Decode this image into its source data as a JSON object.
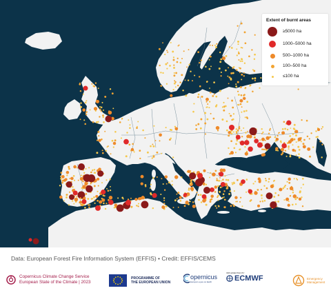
{
  "map": {
    "land_color": "#f2f2f2",
    "sea_color": "#0c3349",
    "border_color": "#5b7888",
    "burnt_colors": {
      "ge5000": "#8b1a1a",
      "1000_5000": "#e02a2a",
      "500_1000": "#ee8a2a",
      "100_500": "#f2a432",
      "le100": "#f5c84b"
    }
  },
  "legend": {
    "title": "Extent of burnt areas",
    "items": [
      {
        "label": "≥5000 ha",
        "color": "#8b1a1a",
        "icon": "large-dark-red-dot"
      },
      {
        "label": "1000–5000 ha",
        "color": "#e02a2a",
        "icon": "red-dot"
      },
      {
        "label": "500–1000 ha",
        "color": "#ee8a2a",
        "icon": "orange-dot"
      },
      {
        "label": "100–500 ha",
        "color": "#f2a432",
        "icon": "small-orange-dot"
      },
      {
        "label": "≤100 ha",
        "color": "#f5c84b",
        "icon": "tiny-yellow-dot"
      }
    ]
  },
  "credit": {
    "prefix": "Data: ",
    "text": "European Forest Fire Information System (EFFIS) • Credit: EFFIS/CEMS"
  },
  "footer": {
    "c3s_line1": "Copernicus Climate Change Service",
    "c3s_line2": "European State of the Climate | 2023",
    "programme_line1": "PROGRAMME OF",
    "programme_line2": "THE EUROPEAN UNION",
    "copernicus": "opernicus",
    "copernicus_sub": "Europe's eyes on Earth",
    "ecmwf_sup": "IMPLEMENTED BY",
    "ecmwf": "ECMWF",
    "em_line1": "Emergency",
    "em_line2": "Management"
  }
}
